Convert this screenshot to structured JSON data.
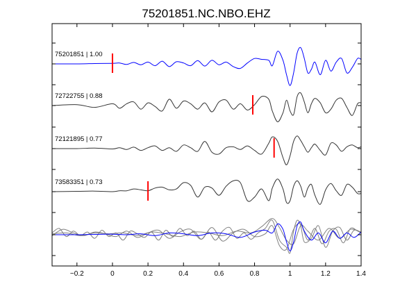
{
  "chart_data": {
    "type": "line",
    "title": "75201851.NC.NBO.EHZ",
    "xlabel": "",
    "ylabel": "",
    "xlim": [
      -0.34,
      1.4
    ],
    "xticks": [
      -0.2,
      0,
      0.2,
      0.4,
      0.6,
      0.8,
      1,
      1.2,
      1.4
    ],
    "xtick_labels": [
      "−0.2",
      "0",
      "0.2",
      "0.4",
      "0.6",
      "0.8",
      "1",
      "1.2",
      "1.4"
    ],
    "grid": false,
    "colors": {
      "primary": "#0000ff",
      "secondary": "#333333",
      "pick": "#ff0000",
      "overlay": "#808080",
      "axis": "#000000"
    },
    "traces": [
      {
        "label": "75201851 | 1.00",
        "event_id": "75201851",
        "correlation": 1.0,
        "pick_time": 0.0,
        "color": "#0000ff",
        "t": [
          -0.34,
          -0.2,
          -0.1,
          0,
          0.04,
          0.08,
          0.12,
          0.16,
          0.2,
          0.24,
          0.28,
          0.32,
          0.36,
          0.4,
          0.44,
          0.48,
          0.52,
          0.56,
          0.6,
          0.64,
          0.68,
          0.72,
          0.76,
          0.8,
          0.84,
          0.88,
          0.9,
          0.93,
          0.96,
          0.98,
          1.0,
          1.02,
          1.04,
          1.06,
          1.08,
          1.1,
          1.12,
          1.14,
          1.17,
          1.2,
          1.23,
          1.26,
          1.29,
          1.32,
          1.35,
          1.38,
          1.4
        ],
        "amp": [
          0,
          0,
          0.02,
          0.03,
          0.05,
          -0.03,
          0.08,
          -0.05,
          0.1,
          -0.1,
          0.15,
          -0.15,
          0.12,
          0.05,
          -0.1,
          0.18,
          -0.12,
          0.2,
          -0.05,
          0.1,
          -0.15,
          -0.25,
          0.05,
          0.3,
          0.25,
          0.2,
          -0.1,
          0.7,
          0.2,
          -0.6,
          -1.2,
          -0.5,
          0.6,
          0.9,
          0.3,
          -0.5,
          -0.3,
          0.1,
          -0.6,
          0.2,
          -0.4,
          0.1,
          0.3,
          -0.5,
          -0.2,
          0.3,
          0.25
        ]
      },
      {
        "label": "72722755 | 0.88",
        "event_id": "72722755",
        "correlation": 0.88,
        "pick_time": 0.79,
        "color": "#333333",
        "t": [
          -0.34,
          -0.2,
          -0.1,
          0,
          0.04,
          0.08,
          0.12,
          0.16,
          0.2,
          0.24,
          0.28,
          0.32,
          0.36,
          0.4,
          0.44,
          0.48,
          0.52,
          0.56,
          0.6,
          0.64,
          0.68,
          0.72,
          0.76,
          0.8,
          0.84,
          0.88,
          0.9,
          0.93,
          0.96,
          0.98,
          1.0,
          1.02,
          1.04,
          1.06,
          1.08,
          1.1,
          1.12,
          1.14,
          1.17,
          1.2,
          1.23,
          1.26,
          1.29,
          1.32,
          1.35,
          1.38,
          1.4
        ],
        "amp": [
          0,
          0.05,
          -0.1,
          0.1,
          -0.15,
          0.1,
          0.2,
          -0.2,
          0.15,
          -0.05,
          -0.3,
          0.35,
          -0.15,
          0.25,
          0.1,
          -0.2,
          0.15,
          -0.35,
          0.2,
          0.3,
          -0.2,
          0.1,
          -0.25,
          0.05,
          0.5,
          0.35,
          -0.3,
          -0.9,
          -0.4,
          0.3,
          -0.3,
          -0.5,
          0.5,
          0.7,
          0.2,
          -0.4,
          0.1,
          0.4,
          0.15,
          -0.4,
          -0.2,
          0.3,
          0.4,
          -0.1,
          -0.55,
          0.1,
          0.15
        ]
      },
      {
        "label": "72121895 | 0.77",
        "event_id": "72121895",
        "correlation": 0.77,
        "pick_time": 0.91,
        "color": "#333333",
        "t": [
          -0.34,
          -0.2,
          -0.1,
          0,
          0.04,
          0.08,
          0.12,
          0.16,
          0.2,
          0.24,
          0.28,
          0.32,
          0.36,
          0.4,
          0.44,
          0.48,
          0.52,
          0.56,
          0.6,
          0.64,
          0.68,
          0.72,
          0.76,
          0.8,
          0.84,
          0.88,
          0.9,
          0.93,
          0.96,
          0.98,
          1.0,
          1.02,
          1.04,
          1.06,
          1.08,
          1.1,
          1.12,
          1.14,
          1.17,
          1.2,
          1.23,
          1.26,
          1.29,
          1.32,
          1.35,
          1.38,
          1.4
        ],
        "amp": [
          0,
          0,
          0.03,
          -0.02,
          0.05,
          -0.05,
          0.08,
          -0.1,
          0.05,
          0.15,
          -0.1,
          0.05,
          -0.15,
          0.2,
          0.05,
          -0.15,
          0.4,
          -0.2,
          -0.3,
          0.05,
          0.1,
          -0.05,
          0.15,
          -0.1,
          -0.3,
          0.3,
          0.65,
          0.4,
          -0.5,
          -0.9,
          -0.4,
          0.4,
          0.7,
          0.45,
          0.1,
          -0.2,
          0.05,
          0.25,
          -0.1,
          -0.35,
          0.3,
          0.2,
          -0.15,
          0.1,
          0.2,
          0.05,
          0.1
        ]
      },
      {
        "label": "73583351 | 0.73",
        "event_id": "73583351",
        "correlation": 0.73,
        "pick_time": 0.2,
        "color": "#333333",
        "t": [
          -0.34,
          -0.2,
          -0.1,
          0,
          0.04,
          0.08,
          0.12,
          0.16,
          0.2,
          0.24,
          0.28,
          0.32,
          0.36,
          0.4,
          0.44,
          0.48,
          0.52,
          0.56,
          0.6,
          0.64,
          0.68,
          0.72,
          0.76,
          0.8,
          0.84,
          0.88,
          0.9,
          0.93,
          0.96,
          0.98,
          1.0,
          1.02,
          1.04,
          1.06,
          1.08,
          1.1,
          1.12,
          1.14,
          1.17,
          1.2,
          1.23,
          1.26,
          1.29,
          1.32,
          1.35,
          1.38,
          1.4
        ],
        "amp": [
          0,
          0.02,
          0.03,
          0,
          0.05,
          0.05,
          0.15,
          0.1,
          0.05,
          0.2,
          0.25,
          0.1,
          0.15,
          0.5,
          0.35,
          -0.3,
          0.25,
          0.2,
          -0.2,
          0.3,
          0.6,
          0.5,
          -0.5,
          -0.3,
          0.15,
          -0.5,
          0.2,
          0.7,
          0.15,
          -0.6,
          -0.5,
          0.3,
          0.6,
          0.3,
          -0.3,
          0.2,
          0.4,
          -0.2,
          -0.7,
          0.1,
          0.45,
          0.05,
          -0.2,
          0.4,
          0.25,
          -0.1,
          -0.1
        ]
      }
    ],
    "overlay": {
      "description": "",
      "traces": [
        {
          "color": "#808080",
          "t": [
            -0.34,
            -0.3,
            -0.26,
            -0.22,
            -0.18,
            -0.14,
            -0.1,
            -0.06,
            -0.02,
            0.02,
            0.06,
            0.1,
            0.14,
            0.18,
            0.22,
            0.26,
            0.3,
            0.34,
            0.38,
            0.42,
            0.46,
            0.5,
            0.54,
            0.58,
            0.62,
            0.66,
            0.7,
            0.74,
            0.78,
            0.82,
            0.86,
            0.9,
            0.94,
            0.98,
            1.0,
            1.02,
            1.04,
            1.06,
            1.08,
            1.12,
            1.16,
            1.2,
            1.24,
            1.28,
            1.32,
            1.36,
            1.4
          ],
          "amp": [
            0.1,
            0.35,
            -0.1,
            0.2,
            -0.05,
            0.15,
            -0.2,
            0.25,
            -0.1,
            0.1,
            -0.3,
            0.2,
            0.05,
            -0.15,
            0.15,
            -0.3,
            0.25,
            -0.1,
            0.35,
            -0.05,
            0.2,
            -0.25,
            0.15,
            -0.3,
            0.2,
            0.4,
            -0.2,
            0.1,
            -0.25,
            0.1,
            0.35,
            0.8,
            -0.3,
            -0.7,
            -1.0,
            0.2,
            0.8,
            0.5,
            -0.4,
            -0.2,
            0.5,
            -0.7,
            0.2,
            0.4,
            -0.3,
            0.25,
            0.1
          ]
        },
        {
          "color": "#808080",
          "t": [
            -0.34,
            -0.28,
            -0.22,
            -0.16,
            -0.1,
            -0.04,
            0.02,
            0.08,
            0.14,
            0.2,
            0.26,
            0.32,
            0.38,
            0.44,
            0.5,
            0.56,
            0.62,
            0.68,
            0.74,
            0.8,
            0.86,
            0.9,
            0.94,
            0.98,
            1.02,
            1.06,
            1.1,
            1.14,
            1.18,
            1.22,
            1.26,
            1.3,
            1.34,
            1.38,
            1.4
          ],
          "amp": [
            -0.05,
            0.3,
            0.1,
            -0.05,
            0.15,
            0.05,
            -0.1,
            0.2,
            -0.15,
            0.1,
            0.25,
            -0.2,
            0.15,
            0.3,
            -0.25,
            0.4,
            -0.35,
            0.1,
            0.3,
            -0.1,
            0.05,
            0.5,
            -0.6,
            -0.8,
            0.3,
            0.6,
            -0.3,
            0.35,
            -0.5,
            0.2,
            0.3,
            -0.45,
            0.35,
            0.2,
            0.1
          ]
        },
        {
          "color": "#808080",
          "t": [
            -0.34,
            -0.26,
            -0.18,
            -0.1,
            -0.02,
            0.06,
            0.14,
            0.22,
            0.3,
            0.38,
            0.46,
            0.54,
            0.62,
            0.7,
            0.78,
            0.84,
            0.9,
            0.94,
            0.98,
            1.02,
            1.06,
            1.1,
            1.16,
            1.22,
            1.28,
            1.34,
            1.4
          ],
          "amp": [
            0.05,
            0.1,
            -0.05,
            0.1,
            0.05,
            0.1,
            -0.05,
            0.15,
            0.05,
            -0.1,
            0.15,
            0.1,
            -0.05,
            0.2,
            0.1,
            0.45,
            0.9,
            0.4,
            -0.3,
            -0.5,
            0.5,
            0.2,
            -0.3,
            0.35,
            -0.2,
            0.3,
            0.15
          ]
        },
        {
          "color": "#0000ff",
          "t": [
            -0.34,
            -0.2,
            -0.1,
            0,
            0.08,
            0.16,
            0.24,
            0.32,
            0.4,
            0.48,
            0.56,
            0.64,
            0.72,
            0.8,
            0.86,
            0.9,
            0.93,
            0.96,
            0.98,
            1.0,
            1.02,
            1.04,
            1.06,
            1.08,
            1.12,
            1.16,
            1.2,
            1.24,
            1.28,
            1.32,
            1.36,
            1.4
          ],
          "amp": [
            0,
            0,
            0.02,
            0.03,
            0,
            0.05,
            -0.05,
            0.1,
            0.05,
            -0.05,
            0.1,
            0.05,
            -0.15,
            0.15,
            0.25,
            0.1,
            0.6,
            0.3,
            -0.4,
            -0.9,
            -0.4,
            0.5,
            0.7,
            0.2,
            -0.3,
            0.1,
            -0.45,
            0.2,
            -0.2,
            0.1,
            -0.15,
            0.15
          ]
        }
      ]
    }
  }
}
